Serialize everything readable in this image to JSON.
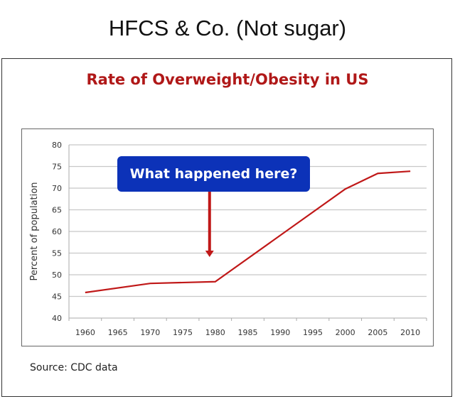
{
  "meme_title": "HFCS & Co. (Not sugar)",
  "source": "Source: CDC data",
  "colors": {
    "line": "#c01818",
    "callout_bg": "#0c32b8",
    "title": "#b01818",
    "grid": "#c8c8c8"
  },
  "chart_data": {
    "type": "line",
    "title": "Rate of Overweight/Obesity in US",
    "xlabel": "",
    "ylabel": "Percent of population",
    "categories": [
      "1960",
      "1965",
      "1970",
      "1975",
      "1980",
      "1985",
      "1990",
      "1995",
      "2000",
      "2005",
      "2010"
    ],
    "y_ticks": [
      40,
      45,
      50,
      55,
      60,
      65,
      70,
      75,
      80
    ],
    "ylim": [
      40,
      80
    ],
    "grid": true,
    "series": [
      {
        "x": [
          "1960",
          "1970",
          "1980",
          "2000",
          "2005",
          "2010"
        ],
        "values": [
          45.9,
          48.0,
          48.4,
          69.8,
          73.4,
          73.9
        ]
      }
    ],
    "annotation": {
      "text": "What happened here?",
      "points_to": "1980",
      "arrow_color": "#c01818"
    }
  }
}
